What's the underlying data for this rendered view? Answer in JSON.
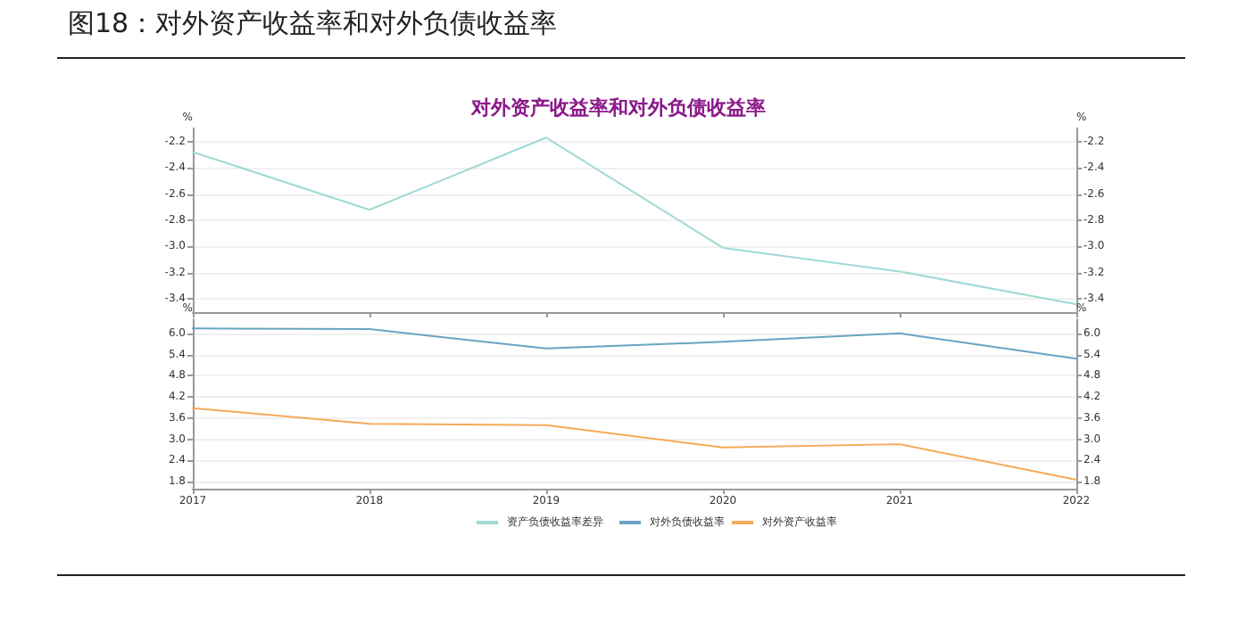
{
  "chart_data": [
    {
      "type": "line",
      "title": "图18：对外资产收益率和对外负债收益率",
      "subtitle": "对外资产收益率和对外负债收益率",
      "ylabel": "%",
      "y2label": "%",
      "categories": [
        "2017",
        "2018",
        "2019",
        "2020",
        "2021",
        "2022"
      ],
      "series": [
        {
          "name": "资产负债收益率差异",
          "color": "#9fd9d6",
          "values": [
            -2.28,
            -2.72,
            -2.17,
            -3.01,
            -3.19,
            -3.44
          ]
        }
      ],
      "ylim": [
        -3.5,
        -2.1
      ],
      "yticks": [
        -3.4,
        -3.2,
        {
          "value": -3,
          "label": "-3.0"
        },
        -2.8,
        -2.6,
        -2.4,
        -2.2
      ],
      "y2lim": [
        -3.5,
        -2.1
      ],
      "y2ticks": [
        -3.4,
        -3.2,
        {
          "value": -3,
          "label": "-3.0"
        },
        -2.8,
        -2.6,
        -2.4,
        -2.2
      ],
      "tick_labels": "y",
      "grid": "y",
      "legend": "bottom",
      "marker": "none",
      "line_style": "solid"
    },
    {
      "type": "line",
      "ylabel": "%",
      "y2label": "%",
      "categories": [
        "2017",
        "2018",
        "2019",
        "2020",
        "2021",
        "2022"
      ],
      "series": [
        {
          "name": "对外负债收益率",
          "color": "#6aa3c4",
          "values": [
            6.14,
            6.12,
            5.57,
            5.76,
            6.0,
            5.28
          ]
        },
        {
          "name": "对外资产收益率",
          "color": "#f5a95a",
          "values": [
            3.88,
            3.44,
            3.4,
            2.77,
            2.86,
            1.85
          ]
        }
      ],
      "ylim": [
        1.6,
        6.4
      ],
      "yticks": [
        1.8,
        2.4,
        {
          "value": 3,
          "label": "3.0"
        },
        3.6,
        4.2,
        4.8,
        5.4,
        {
          "value": 6,
          "label": "6.0"
        }
      ],
      "y2lim": [
        1.6,
        6.4
      ],
      "y2ticks": [
        1.8,
        2.4,
        {
          "value": 3,
          "label": "3.0"
        },
        3.6,
        4.2,
        4.8,
        5.4,
        {
          "value": 6,
          "label": "6.0"
        }
      ],
      "grid": "y",
      "legend": "bottom",
      "marker": "none",
      "line_style": "solid"
    }
  ]
}
